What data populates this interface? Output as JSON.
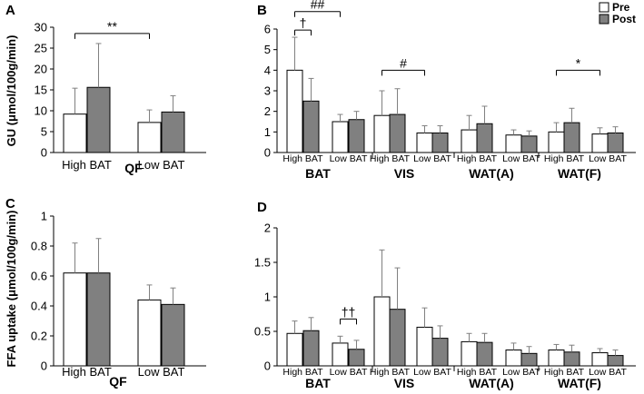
{
  "legend": {
    "pre": "Pre",
    "post": "Post",
    "pre_color": "#ffffff",
    "post_color": "#808080"
  },
  "chart_data": [
    {
      "panel": "A",
      "type": "bar",
      "ylabel": "GU (μmol/100g/min)",
      "ylim": [
        0,
        30
      ],
      "yticks": [
        0,
        5,
        10,
        15,
        20,
        25,
        30
      ],
      "categories": [
        "High BAT",
        "Low BAT"
      ],
      "groups": [
        "QF"
      ],
      "series": [
        {
          "name": "Pre",
          "values": [
            9.2,
            7.2
          ],
          "errors": [
            6.2,
            3.0
          ]
        },
        {
          "name": "Post",
          "values": [
            15.6,
            9.7
          ],
          "errors": [
            10.5,
            3.9
          ]
        }
      ],
      "annotations": [
        {
          "text": "**",
          "from": 0,
          "to": 1,
          "y": 28.5
        }
      ]
    },
    {
      "panel": "B",
      "type": "bar",
      "ylim": [
        0,
        6
      ],
      "yticks": [
        0,
        1,
        2,
        3,
        4,
        5,
        6
      ],
      "categories": [
        "High BAT",
        "Low BAT",
        "High BAT",
        "Low BAT",
        "High BAT",
        "Low BAT",
        "High BAT",
        "Low BAT"
      ],
      "groups": [
        "BAT",
        "VIS",
        "WAT(A)",
        "WAT(F)"
      ],
      "series": [
        {
          "name": "Pre",
          "values": [
            4.0,
            1.5,
            1.8,
            0.95,
            1.1,
            0.85,
            1.0,
            0.9
          ],
          "errors": [
            1.6,
            0.35,
            1.2,
            0.35,
            0.7,
            0.25,
            0.45,
            0.3
          ]
        },
        {
          "name": "Post",
          "values": [
            2.5,
            1.6,
            1.85,
            0.95,
            1.4,
            0.8,
            1.45,
            0.95
          ],
          "errors": [
            1.1,
            0.4,
            1.25,
            0.35,
            0.85,
            0.25,
            0.7,
            0.3
          ]
        }
      ],
      "annotations": [
        {
          "text": "##",
          "from": 0,
          "to": 1,
          "y": 6.85
        },
        {
          "text": "†",
          "from": 0,
          "to": 0.5,
          "y": 5.95
        },
        {
          "text": "#",
          "from": 2,
          "to": 3,
          "y": 4.0
        },
        {
          "text": "*",
          "from": 6,
          "to": 7,
          "y": 4.0
        }
      ]
    },
    {
      "panel": "C",
      "type": "bar",
      "ylabel": "FFA uptake (μmol/100g/min)",
      "ylim": [
        0,
        1
      ],
      "yticks": [
        0,
        0.2,
        0.4,
        0.6,
        0.8,
        1
      ],
      "categories": [
        "High BAT",
        "Low BAT"
      ],
      "groups": [
        "QF"
      ],
      "series": [
        {
          "name": "Pre",
          "values": [
            0.62,
            0.44
          ],
          "errors": [
            0.2,
            0.1
          ]
        },
        {
          "name": "Post",
          "values": [
            0.62,
            0.41
          ],
          "errors": [
            0.23,
            0.11
          ]
        }
      ],
      "annotations": []
    },
    {
      "panel": "D",
      "type": "bar",
      "ylim": [
        0,
        2
      ],
      "yticks": [
        0,
        0.5,
        1,
        1.5,
        2
      ],
      "categories": [
        "High BAT",
        "Low BAT",
        "High BAT",
        "Low BAT",
        "High BAT",
        "Low BAT",
        "High BAT",
        "Low BAT"
      ],
      "groups": [
        "BAT",
        "VIS",
        "WAT(A)",
        "WAT(F)"
      ],
      "series": [
        {
          "name": "Pre",
          "values": [
            0.47,
            0.33,
            1.0,
            0.56,
            0.35,
            0.23,
            0.23,
            0.19
          ],
          "errors": [
            0.18,
            0.1,
            0.68,
            0.28,
            0.12,
            0.1,
            0.08,
            0.06
          ]
        },
        {
          "name": "Post",
          "values": [
            0.51,
            0.24,
            0.82,
            0.4,
            0.34,
            0.18,
            0.2,
            0.15
          ],
          "errors": [
            0.19,
            0.13,
            0.6,
            0.18,
            0.13,
            0.1,
            0.1,
            0.08
          ]
        }
      ],
      "annotations": [
        {
          "text": "††",
          "from": 1,
          "to": 1,
          "y": 0.68
        }
      ]
    }
  ],
  "panel_labels": [
    "A",
    "B",
    "C",
    "D"
  ]
}
